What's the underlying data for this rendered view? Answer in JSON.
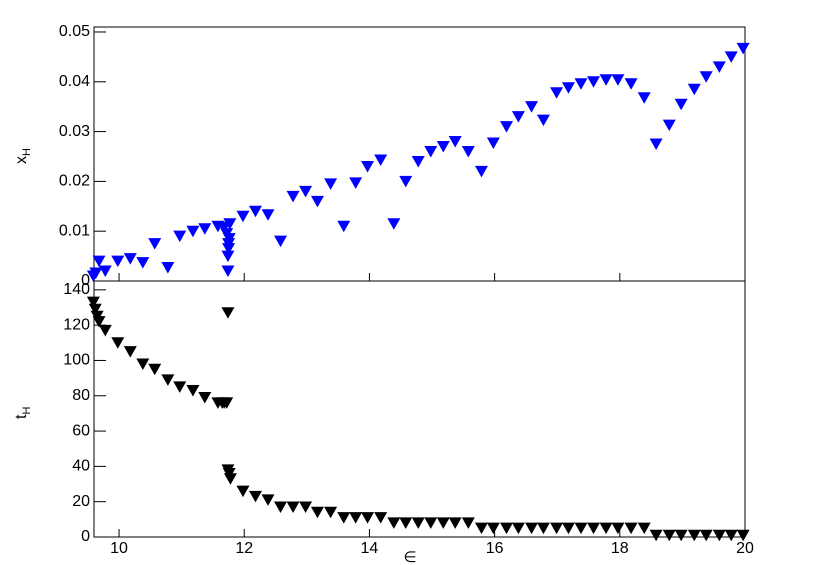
{
  "chart_data": [
    {
      "type": "scatter",
      "ylabel": "x",
      "ylabel_sub": "H",
      "color": "#0000ff",
      "xlim": [
        9.6,
        20
      ],
      "xticks": [
        10,
        12,
        14,
        16,
        18,
        20
      ],
      "ylim": [
        0,
        0.051
      ],
      "yticks": [
        0,
        0.01,
        0.02,
        0.03,
        0.04,
        0.05
      ],
      "x": [
        9.59,
        9.63,
        9.68,
        9.78,
        9.98,
        10.18,
        10.38,
        10.57,
        10.78,
        10.97,
        11.18,
        11.37,
        11.58,
        11.68,
        11.72,
        11.74,
        11.74,
        11.75,
        11.75,
        11.76,
        11.77,
        11.98,
        12.18,
        12.38,
        12.58,
        12.78,
        12.98,
        13.17,
        13.38,
        13.59,
        13.78,
        13.97,
        14.18,
        14.39,
        14.58,
        14.78,
        14.98,
        15.18,
        15.37,
        15.58,
        15.79,
        15.98,
        16.19,
        16.38,
        16.59,
        16.78,
        16.99,
        17.18,
        17.38,
        17.58,
        17.78,
        17.97,
        18.18,
        18.39,
        18.58,
        18.79,
        18.98,
        19.19,
        19.38,
        19.59,
        19.78,
        19.97
      ],
      "values": [
        0.001,
        0.0016,
        0.004,
        0.002,
        0.004,
        0.0045,
        0.0037,
        0.0075,
        0.0027,
        0.009,
        0.01,
        0.0105,
        0.011,
        0.0108,
        0.0095,
        0.002,
        0.005,
        0.0065,
        0.0075,
        0.0085,
        0.0115,
        0.013,
        0.014,
        0.0133,
        0.008,
        0.017,
        0.018,
        0.016,
        0.0195,
        0.011,
        0.0197,
        0.023,
        0.0243,
        0.0115,
        0.02,
        0.024,
        0.026,
        0.027,
        0.028,
        0.026,
        0.022,
        0.0277,
        0.031,
        0.033,
        0.035,
        0.0323,
        0.0378,
        0.0388,
        0.0396,
        0.04,
        0.0404,
        0.0404,
        0.0396,
        0.0368,
        0.0275,
        0.0313,
        0.0355,
        0.0385,
        0.041,
        0.043,
        0.045,
        0.0467
      ]
    },
    {
      "type": "scatter",
      "ylabel": "t",
      "ylabel_sub": "H",
      "xlabel": "∈",
      "color": "#000000",
      "xlim": [
        9.6,
        20
      ],
      "xticks": [
        10,
        12,
        14,
        16,
        18,
        20
      ],
      "ylim": [
        0,
        145
      ],
      "yticks": [
        0,
        20,
        40,
        60,
        80,
        100,
        120,
        140
      ],
      "x": [
        9.59,
        9.62,
        9.65,
        9.68,
        9.78,
        9.98,
        10.18,
        10.38,
        10.57,
        10.78,
        10.97,
        11.18,
        11.37,
        11.58,
        11.65,
        11.68,
        11.72,
        11.74,
        11.74,
        11.76,
        11.78,
        11.98,
        12.18,
        12.38,
        12.58,
        12.78,
        12.98,
        13.17,
        13.38,
        13.59,
        13.78,
        13.97,
        14.18,
        14.39,
        14.58,
        14.78,
        14.98,
        15.18,
        15.37,
        15.58,
        15.79,
        15.98,
        16.19,
        16.38,
        16.59,
        16.78,
        16.99,
        17.18,
        17.38,
        17.58,
        17.78,
        17.97,
        18.18,
        18.39,
        18.58,
        18.79,
        18.98,
        19.19,
        19.38,
        19.59,
        19.78,
        19.97
      ],
      "values": [
        133,
        129,
        125,
        122,
        117,
        110,
        105,
        98,
        95,
        89,
        85,
        83,
        79,
        76,
        76,
        76,
        76,
        127,
        38,
        36,
        33,
        26,
        23,
        21,
        17,
        17,
        17,
        14,
        14,
        11,
        11,
        11,
        11,
        8,
        8,
        8,
        8,
        8,
        8,
        8,
        5,
        5,
        5,
        5,
        5,
        5,
        5,
        5,
        5,
        5,
        5,
        5,
        5,
        5,
        1,
        1,
        1,
        1,
        1,
        1,
        1,
        1
      ]
    }
  ]
}
